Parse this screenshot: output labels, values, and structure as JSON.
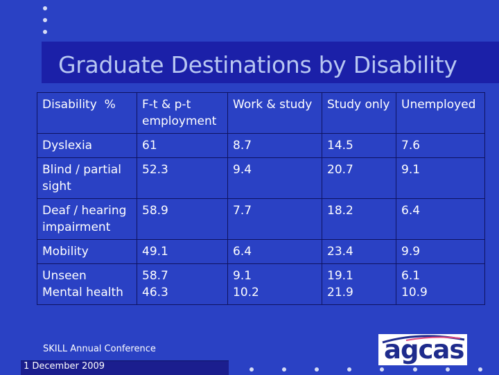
{
  "slide": {
    "title": "Graduate Destinations by Disability",
    "footer": "SKILL Annual Conference",
    "date": "1 December 2009",
    "logo_text": "agcas"
  },
  "table": {
    "headers": [
      "Disability  %",
      "F-t & p-t employment",
      "Work & study",
      "Study only",
      "Unemployed"
    ],
    "rows": [
      [
        "Dyslexia",
        "61",
        "8.7",
        "14.5",
        "7.6"
      ],
      [
        "Blind / partial sight",
        "52.3",
        "9.4",
        "20.7",
        "9.1"
      ],
      [
        "Deaf / hearing impairment",
        "58.9",
        "7.7",
        "18.2",
        "6.4"
      ],
      [
        "Mobility",
        "49.1",
        "6.4",
        "23.4",
        "9.9"
      ],
      [
        "Unseen\nMental health",
        "58.7\n46.3",
        "9.1\n10.2",
        "19.1\n21.9",
        "6.1\n10.9"
      ]
    ]
  },
  "colors": {
    "background": "#2a41c4",
    "title_band": "#1b20a8",
    "title_text": "#b8c7f2",
    "grid": "#0e1260",
    "logo_text": "#1e2b8c"
  }
}
